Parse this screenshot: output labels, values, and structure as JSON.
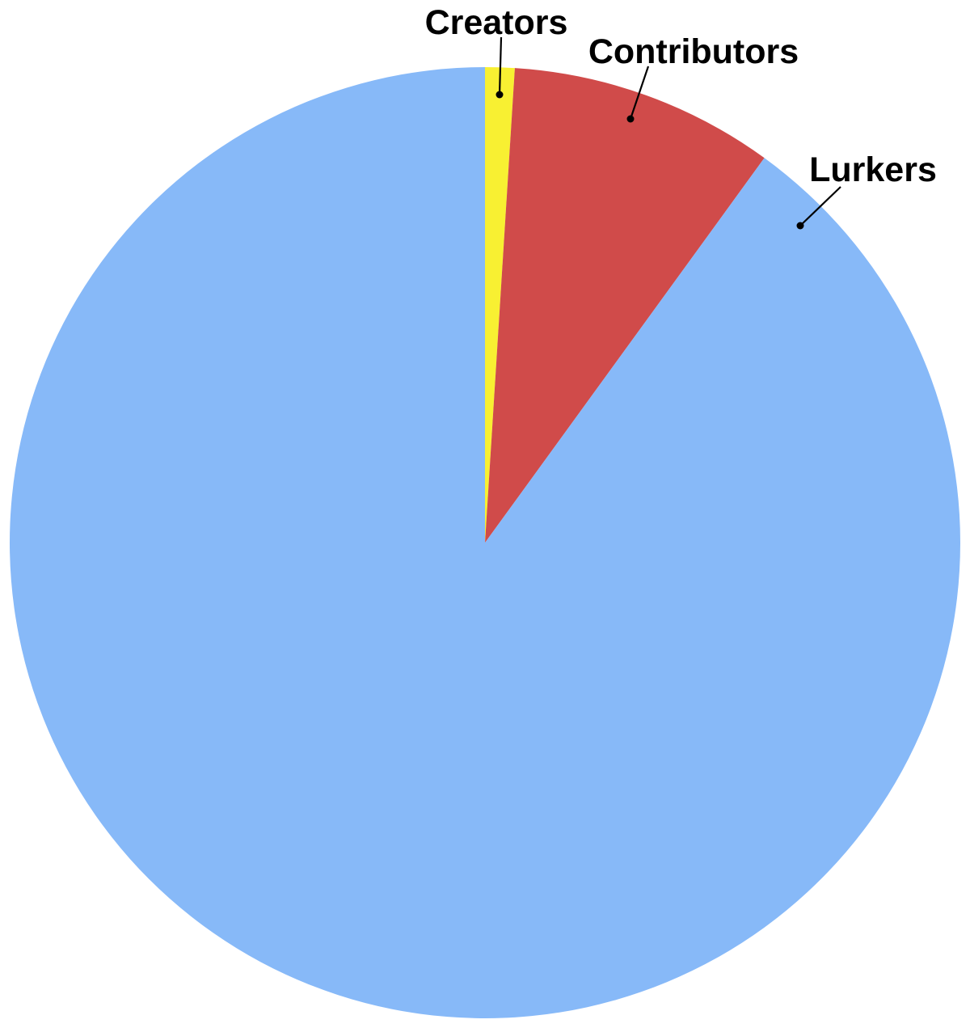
{
  "chart_data": {
    "type": "pie",
    "title": "",
    "start_angle": "12 o'clock",
    "direction": "clockwise",
    "slices": [
      {
        "label": "Creators",
        "value": 1,
        "color": "#f8f032"
      },
      {
        "label": "Contributors",
        "value": 9,
        "color": "#d04b4a"
      },
      {
        "label": "Lurkers",
        "value": 90,
        "color": "#87b9f8"
      }
    ],
    "legend": "none",
    "labels": "outside with leader lines"
  }
}
